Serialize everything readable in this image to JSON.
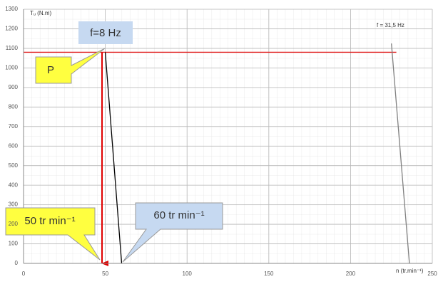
{
  "chart_data": {
    "type": "line",
    "ylabel": "Tᵤ (N.m)",
    "xlabel": "n (tr.min⁻¹)",
    "xlim": [
      0,
      250
    ],
    "xticks": [
      0,
      50,
      100,
      150,
      200,
      250
    ],
    "ylim": [
      0,
      1300
    ],
    "yticks": [
      0,
      100,
      200,
      300,
      400,
      500,
      600,
      700,
      800,
      900,
      1000,
      1100,
      1200,
      1300
    ],
    "grid": true,
    "series": [
      {
        "color": "#e02020",
        "x": [
          0,
          228
        ],
        "values": [
          1080,
          1080
        ]
      },
      {
        "color": "#000000",
        "x": [
          50,
          60
        ],
        "values": [
          1080,
          0
        ]
      },
      {
        "color": "#808080",
        "x": [
          225,
          236
        ],
        "values": [
          1125,
          0
        ]
      },
      {
        "color": "#e00000",
        "arrow": true,
        "x": [
          48,
          48
        ],
        "values": [
          1080,
          0
        ]
      }
    ],
    "annotations": [
      "f=8 Hz",
      "P",
      "50 tr min⁻¹",
      "60 tr min⁻¹",
      "f = 31,5 Hz"
    ]
  }
}
